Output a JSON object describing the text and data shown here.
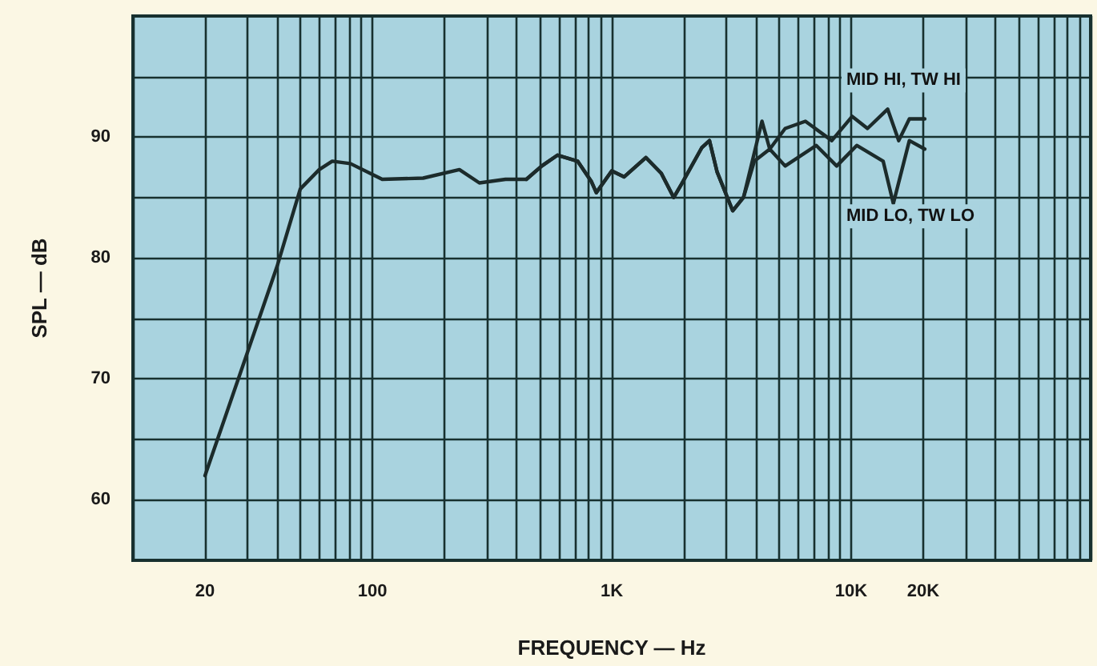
{
  "chart_data": {
    "type": "line",
    "xlabel": "FREQUENCY — Hz",
    "ylabel": "SPL — dB",
    "log": "x",
    "grid": true,
    "legend": false,
    "marker": "none",
    "xlim": [
      10,
      100000
    ],
    "ylim": [
      55,
      100
    ],
    "xticks": [
      {
        "value": 10,
        "label": null
      },
      {
        "value": 20,
        "label": "20"
      },
      {
        "value": 30,
        "label": null
      },
      {
        "value": 40,
        "label": null
      },
      {
        "value": 50,
        "label": null
      },
      {
        "value": 60,
        "label": null
      },
      {
        "value": 70,
        "label": null
      },
      {
        "value": 80,
        "label": null
      },
      {
        "value": 90,
        "label": null
      },
      {
        "value": 100,
        "label": "100"
      },
      {
        "value": 200,
        "label": null
      },
      {
        "value": 300,
        "label": null
      },
      {
        "value": 400,
        "label": null
      },
      {
        "value": 500,
        "label": null
      },
      {
        "value": 600,
        "label": null
      },
      {
        "value": 700,
        "label": null
      },
      {
        "value": 800,
        "label": null
      },
      {
        "value": 900,
        "label": null
      },
      {
        "value": 1000,
        "label": "1K"
      },
      {
        "value": 2000,
        "label": null
      },
      {
        "value": 3000,
        "label": null
      },
      {
        "value": 4000,
        "label": null
      },
      {
        "value": 5000,
        "label": null
      },
      {
        "value": 6000,
        "label": null
      },
      {
        "value": 7000,
        "label": null
      },
      {
        "value": 8000,
        "label": null
      },
      {
        "value": 9000,
        "label": null
      },
      {
        "value": 10000,
        "label": "10K"
      },
      {
        "value": 20000,
        "label": "20K"
      },
      {
        "value": 30000,
        "label": null
      },
      {
        "value": 40000,
        "label": null
      },
      {
        "value": 50000,
        "label": null
      },
      {
        "value": 60000,
        "label": null
      },
      {
        "value": 70000,
        "label": null
      },
      {
        "value": 80000,
        "label": null
      },
      {
        "value": 90000,
        "label": null
      },
      {
        "value": 100000,
        "label": null
      }
    ],
    "yticks": [
      60,
      {
        "value": 65,
        "label": null
      },
      70,
      {
        "value": 75,
        "label": null
      },
      80,
      {
        "value": 85,
        "label": null
      },
      90,
      {
        "value": 95,
        "label": null
      }
    ],
    "series": [
      {
        "name": "MID HI, TW HI",
        "color": "#1c2b2b",
        "x": [
          20,
          40,
          50,
          60,
          68,
          81,
          110,
          163,
          231,
          280,
          360,
          440,
          510,
          594,
          720,
          823,
          862,
          1000,
          1127,
          1388,
          1610,
          1815,
          1955,
          2375,
          2560,
          2755,
          3200,
          3550,
          4240,
          4570,
          5300,
          6440,
          8300,
          10100,
          11700,
          14200,
          15800,
          17500,
          20300
        ],
        "values": [
          62,
          79.3,
          85.7,
          87.3,
          88,
          87.8,
          86.5,
          86.6,
          87.3,
          86.2,
          86.5,
          86.5,
          87.6,
          88.5,
          88,
          86.3,
          85.4,
          87.2,
          86.7,
          88.3,
          87,
          85,
          86.1,
          89.1,
          89.7,
          87.1,
          83.9,
          85,
          91.3,
          89,
          90.7,
          91.3,
          89.7,
          91.7,
          90.7,
          92.3,
          89.7,
          91.5,
          91.5
        ]
      },
      {
        "name": "MID LO, TW LO",
        "color": "#1c2b2b",
        "x": [
          440,
          510,
          594,
          720,
          823,
          862,
          1000,
          1127,
          1388,
          1610,
          1815,
          1955,
          2375,
          2560,
          2755,
          3200,
          3550,
          3940,
          4570,
          5300,
          7150,
          8700,
          10550,
          13600,
          15000,
          17500,
          20300
        ],
        "values": [
          86.5,
          87.6,
          88.5,
          88,
          86.3,
          85.4,
          87.2,
          86.7,
          88.3,
          87,
          85,
          86.1,
          89.1,
          89.7,
          87.1,
          83.9,
          85,
          88,
          89,
          87.6,
          89.3,
          87.6,
          89.3,
          88,
          84.5,
          89.7,
          89
        ]
      }
    ]
  }
}
